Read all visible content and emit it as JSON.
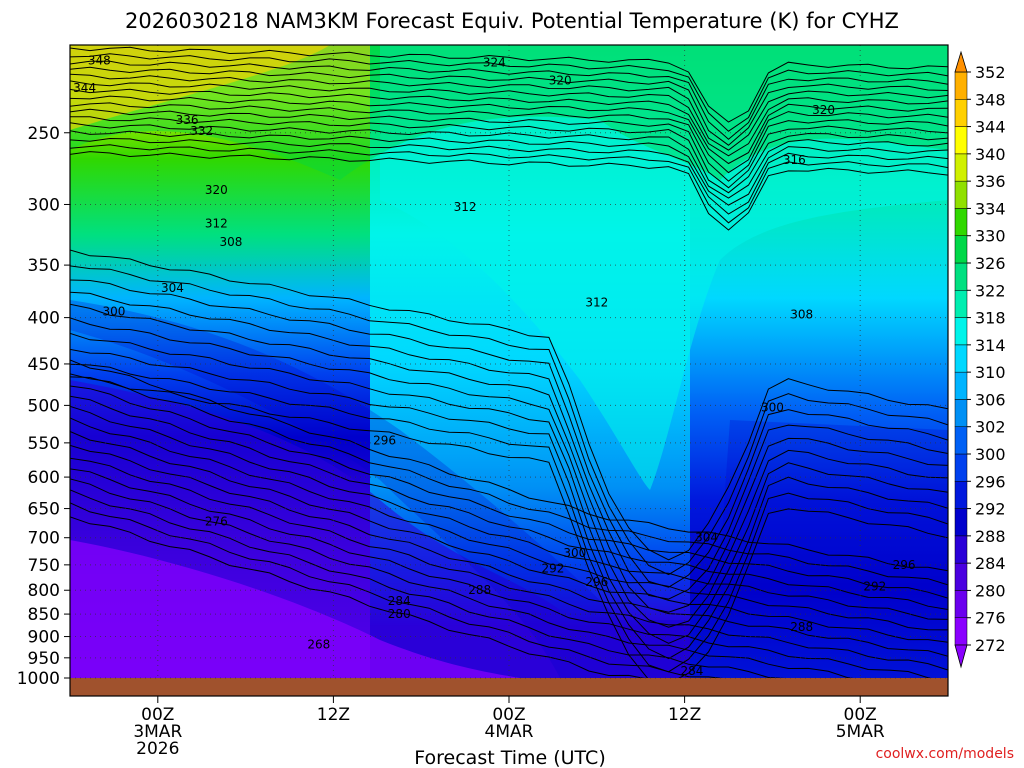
{
  "chart_data": {
    "type": "contour",
    "title": "2026030218 NAM3KM Forecast Equiv. Potential Temperature (K) for CYHZ",
    "xlabel": "Forecast Time (UTC)",
    "ylabel": "",
    "credit": "coolwx.com/models",
    "x_ticks": [
      {
        "hour": 6,
        "lines": [
          "00Z",
          "3MAR",
          "2026"
        ]
      },
      {
        "hour": 18,
        "lines": [
          "12Z"
        ]
      },
      {
        "hour": 30,
        "lines": [
          "00Z",
          "4MAR"
        ]
      },
      {
        "hour": 42,
        "lines": [
          "12Z"
        ]
      },
      {
        "hour": 54,
        "lines": [
          "00Z",
          "5MAR"
        ]
      }
    ],
    "xlim_hours": [
      0,
      60
    ],
    "y_ticks": [
      250,
      300,
      350,
      400,
      450,
      500,
      550,
      600,
      650,
      700,
      750,
      800,
      850,
      900,
      950,
      1000
    ],
    "y_unit": "hPa",
    "ylim": [
      200,
      1000
    ],
    "y_scale": "log-pressure",
    "grid": "dotted",
    "colorbar": {
      "levels": [
        272,
        276,
        280,
        284,
        288,
        292,
        296,
        300,
        302,
        306,
        310,
        314,
        318,
        322,
        326,
        330,
        334,
        336,
        340,
        344,
        348,
        352
      ],
      "colors": [
        "#8a00ff",
        "#6a00ee",
        "#4a00e0",
        "#2a00d8",
        "#0000cc",
        "#0018dd",
        "#0040ee",
        "#0060f5",
        "#0090f5",
        "#00b4ff",
        "#00d8ff",
        "#00f4ea",
        "#00eeb0",
        "#00e080",
        "#00d848",
        "#30d800",
        "#90e000",
        "#d0f000",
        "#ffff00",
        "#ffd000",
        "#ffb000",
        "#ff9000"
      ],
      "extend": "both"
    },
    "contour_labels": [
      {
        "value": "348",
        "hour": 2.0,
        "p": 208
      },
      {
        "value": "344",
        "hour": 1.0,
        "p": 223
      },
      {
        "value": "324",
        "hour": 29.0,
        "p": 209
      },
      {
        "value": "320",
        "hour": 33.5,
        "p": 219
      },
      {
        "value": "320",
        "hour": 51.5,
        "p": 236
      },
      {
        "value": "336",
        "hour": 8.0,
        "p": 242
      },
      {
        "value": "332",
        "hour": 9.0,
        "p": 249
      },
      {
        "value": "316",
        "hour": 49.5,
        "p": 268
      },
      {
        "value": "320",
        "hour": 10.0,
        "p": 289
      },
      {
        "value": "312",
        "hour": 27.0,
        "p": 302
      },
      {
        "value": "312",
        "hour": 10.0,
        "p": 315
      },
      {
        "value": "308",
        "hour": 11.0,
        "p": 330
      },
      {
        "value": "304",
        "hour": 7.0,
        "p": 371
      },
      {
        "value": "312",
        "hour": 36.0,
        "p": 385
      },
      {
        "value": "300",
        "hour": 3.0,
        "p": 394
      },
      {
        "value": "308",
        "hour": 50.0,
        "p": 397
      },
      {
        "value": "300",
        "hour": 48.0,
        "p": 503
      },
      {
        "value": "296",
        "hour": 21.5,
        "p": 547
      },
      {
        "value": "276",
        "hour": 10.0,
        "p": 672
      },
      {
        "value": "304",
        "hour": 43.5,
        "p": 700
      },
      {
        "value": "300",
        "hour": 34.5,
        "p": 728
      },
      {
        "value": "292",
        "hour": 33.0,
        "p": 757
      },
      {
        "value": "296",
        "hour": 57.0,
        "p": 750
      },
      {
        "value": "296",
        "hour": 36.0,
        "p": 783
      },
      {
        "value": "292",
        "hour": 55.0,
        "p": 792
      },
      {
        "value": "288",
        "hour": 28.0,
        "p": 800
      },
      {
        "value": "284",
        "hour": 22.5,
        "p": 822
      },
      {
        "value": "280",
        "hour": 22.5,
        "p": 850
      },
      {
        "value": "288",
        "hour": 50.0,
        "p": 878
      },
      {
        "value": "268",
        "hour": 17.0,
        "p": 918
      },
      {
        "value": "284",
        "hour": 42.5,
        "p": 982
      }
    ]
  }
}
